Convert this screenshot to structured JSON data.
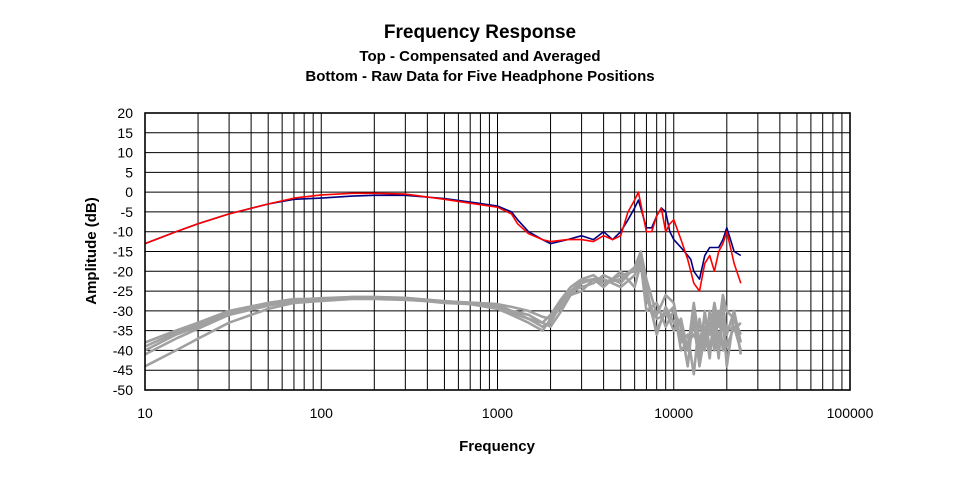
{
  "chart_data": {
    "type": "line",
    "title": "Frequency Response",
    "subtitle_lines": [
      "Top -  Compensated and Averaged",
      "Bottom - Raw Data for Five Headphone Positions"
    ],
    "xlabel": "Frequency",
    "ylabel": "Amplitude (dB)",
    "x_scale": "log",
    "xlim": [
      10,
      100000
    ],
    "ylim": [
      -50,
      20
    ],
    "x_ticks": [
      "10",
      "100",
      "1000",
      "10000",
      "100000"
    ],
    "y_ticks": [
      "20",
      "15",
      "10",
      "5",
      "0",
      "-5",
      "-10",
      "-15",
      "-20",
      "-25",
      "-30",
      "-35",
      "-40",
      "-45",
      "-50"
    ],
    "grid": true,
    "series": [
      {
        "name": "",
        "color": "#000080",
        "x": [
          10,
          15,
          20,
          30,
          50,
          70,
          100,
          150,
          200,
          300,
          500,
          700,
          1000,
          1200,
          1300,
          1500,
          1800,
          2000,
          2500,
          3000,
          3500,
          4000,
          4500,
          5000,
          5500,
          6000,
          6300,
          6500,
          7000,
          7500,
          8000,
          8500,
          9000,
          9500,
          10000,
          11000,
          12000,
          12500,
          13000,
          14000,
          15000,
          16000,
          17000,
          18000,
          19000,
          20000,
          21000,
          22000,
          24000
        ],
        "y": [
          -13,
          -10,
          -8,
          -5.5,
          -3,
          -1.8,
          -1.5,
          -1,
          -0.8,
          -0.8,
          -1.6,
          -2.5,
          -3.5,
          -5,
          -7,
          -10,
          -12,
          -13,
          -12,
          -11,
          -12,
          -10,
          -12,
          -10,
          -7,
          -4,
          -2,
          -4,
          -9,
          -9,
          -6,
          -4,
          -5,
          -10,
          -12,
          -14,
          -16,
          -17,
          -20,
          -22,
          -16,
          -14,
          -14,
          -14,
          -12,
          -9,
          -12,
          -15,
          -16
        ]
      },
      {
        "name": "",
        "color": "#ff0000",
        "x": [
          10,
          15,
          20,
          30,
          50,
          70,
          100,
          150,
          200,
          300,
          500,
          700,
          1000,
          1200,
          1300,
          1500,
          1800,
          2000,
          2500,
          3000,
          3500,
          4000,
          4500,
          5000,
          5500,
          6000,
          6300,
          6500,
          7000,
          7500,
          8000,
          8500,
          9000,
          9500,
          10000,
          11000,
          12000,
          12500,
          13000,
          14000,
          15000,
          16000,
          17000,
          18000,
          19000,
          20000,
          21000,
          22000,
          24000
        ],
        "y": [
          -13,
          -10,
          -8,
          -5.5,
          -3,
          -1.5,
          -0.7,
          -0.3,
          -0.3,
          -0.5,
          -1.8,
          -2.8,
          -3.8,
          -5.5,
          -8,
          -10.5,
          -12,
          -12.5,
          -12,
          -12,
          -12.5,
          -11,
          -12,
          -11,
          -5,
          -2,
          0,
          -3,
          -10,
          -10,
          -6,
          -4,
          -10,
          -8,
          -7,
          -12,
          -17,
          -20,
          -23,
          -25,
          -18,
          -16,
          -20,
          -15,
          -13,
          -10,
          -14,
          -18,
          -23
        ]
      },
      {
        "name": "",
        "color": "#a0a0a0",
        "x": [
          10,
          15,
          20,
          30,
          50,
          70,
          100,
          150,
          200,
          300,
          500,
          700,
          1000,
          1200,
          1500,
          1800,
          2000,
          2300,
          2600,
          3000,
          3500,
          4000,
          5000,
          6000,
          6500,
          7000,
          8000,
          9000,
          10000,
          11000,
          12000,
          13000,
          14000,
          15000,
          16000,
          17000,
          18000,
          19000,
          20000,
          22000,
          24000
        ],
        "y": [
          -38,
          -35,
          -33,
          -30,
          -28,
          -27,
          -27,
          -26.5,
          -26.5,
          -26.8,
          -27.5,
          -28,
          -28.5,
          -30,
          -31,
          -33,
          -34,
          -30,
          -26,
          -23,
          -22,
          -23,
          -21,
          -20,
          -17,
          -26,
          -35,
          -30,
          -35,
          -32,
          -40,
          -28,
          -38,
          -32,
          -36,
          -28,
          -34,
          -26,
          -30,
          -32,
          -36
        ]
      },
      {
        "name": "",
        "color": "#a0a0a0",
        "x": [
          10,
          15,
          20,
          30,
          50,
          70,
          100,
          150,
          200,
          300,
          500,
          700,
          1000,
          1200,
          1500,
          1800,
          2000,
          2300,
          2600,
          3000,
          3500,
          4000,
          5000,
          6000,
          6500,
          7000,
          8000,
          9000,
          10000,
          11000,
          12000,
          13000,
          14000,
          15000,
          16000,
          17000,
          18000,
          19000,
          20000,
          22000,
          24000
        ],
        "y": [
          -40,
          -36,
          -34,
          -31,
          -28.5,
          -27.5,
          -27,
          -26.7,
          -26.8,
          -27,
          -27.8,
          -28,
          -29,
          -30,
          -32,
          -34,
          -33,
          -28,
          -25,
          -24,
          -23,
          -21,
          -23,
          -19,
          -15,
          -22,
          -31,
          -26,
          -28,
          -38,
          -36,
          -46,
          -32,
          -40,
          -30,
          -38,
          -30,
          -40,
          -34,
          -35,
          -33
        ]
      },
      {
        "name": "",
        "color": "#a0a0a0",
        "x": [
          10,
          15,
          20,
          30,
          50,
          70,
          100,
          150,
          200,
          300,
          500,
          700,
          1000,
          1200,
          1500,
          1800,
          2000,
          2300,
          2600,
          3000,
          3500,
          4000,
          5000,
          6000,
          6500,
          7000,
          8000,
          9000,
          10000,
          11000,
          12000,
          13000,
          14000,
          15000,
          16000,
          17000,
          18000,
          19000,
          20000,
          22000,
          24000
        ],
        "y": [
          -39,
          -35.5,
          -33.5,
          -30.5,
          -28,
          -27.2,
          -26.8,
          -26.5,
          -26.5,
          -26.7,
          -27.6,
          -27.9,
          -28.3,
          -29,
          -30,
          -31.5,
          -32,
          -27.5,
          -25,
          -22.5,
          -22,
          -24,
          -20,
          -24,
          -18,
          -30,
          -28,
          -34,
          -30,
          -34,
          -44,
          -30,
          -42,
          -30,
          -40,
          -33,
          -42,
          -28,
          -36,
          -30,
          -38
        ]
      },
      {
        "name": "",
        "color": "#a0a0a0",
        "x": [
          10,
          15,
          20,
          30,
          50,
          70,
          100,
          150,
          200,
          300,
          500,
          700,
          1000,
          1200,
          1500,
          1800,
          2000,
          2300,
          2600,
          3000,
          3500,
          4000,
          5000,
          6000,
          6500,
          7000,
          8000,
          9000,
          10000,
          11000,
          12000,
          13000,
          14000,
          15000,
          16000,
          17000,
          18000,
          19000,
          20000,
          22000,
          24000
        ],
        "y": [
          -41,
          -37,
          -34.5,
          -31,
          -28.7,
          -27.6,
          -27.1,
          -26.8,
          -26.7,
          -27,
          -28,
          -28.3,
          -29.5,
          -31,
          -33,
          -35,
          -32,
          -29,
          -26,
          -25,
          -22,
          -22,
          -24,
          -21,
          -17,
          -24,
          -36,
          -29,
          -33,
          -36,
          -40,
          -33,
          -44,
          -36,
          -33,
          -40,
          -36,
          -34,
          -39,
          -34,
          -40
        ]
      },
      {
        "name": "",
        "color": "#a0a0a0",
        "x": [
          10,
          15,
          20,
          30,
          50,
          70,
          100,
          150,
          200,
          300,
          500,
          700,
          1000,
          1200,
          1500,
          1800,
          2000,
          2300,
          2600,
          3000,
          3500,
          4000,
          5000,
          6000,
          6500,
          7000,
          8000,
          9000,
          10000,
          11000,
          12000,
          13000,
          14000,
          15000,
          16000,
          17000,
          18000,
          19000,
          20000,
          22000,
          24000
        ],
        "y": [
          -44,
          -40,
          -37,
          -33,
          -29.5,
          -28,
          -27.5,
          -27,
          -27,
          -27.2,
          -27.8,
          -28,
          -28.8,
          -30.5,
          -32,
          -33,
          -31,
          -27,
          -24,
          -22,
          -21,
          -23,
          -22,
          -19,
          -16,
          -27,
          -32,
          -31,
          -29,
          -40,
          -38,
          -36,
          -39,
          -34,
          -42,
          -30,
          -38,
          -32,
          -44,
          -31,
          -41
        ]
      }
    ]
  }
}
